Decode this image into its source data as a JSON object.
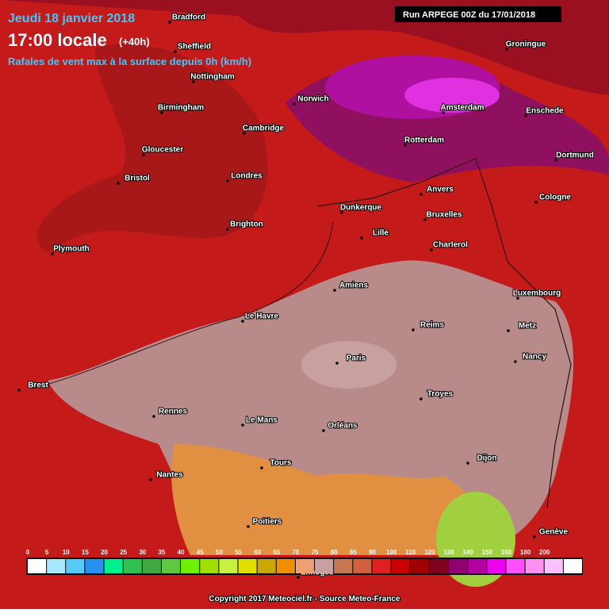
{
  "header": {
    "date": "Jeudi 18 janvier 2018",
    "time": "17:00 locale",
    "lead": "(+40h)",
    "subtitle": "Rafales de vent max à la surface depuis 0h (km/h)",
    "run": "Run ARPEGE 00Z du 17/01/2018"
  },
  "cities": [
    "Bradford",
    "Sheffield",
    "Nottingham",
    "Birmingham",
    "Norwich",
    "Cambridge",
    "Gloucester",
    "Bristol",
    "Londres",
    "Brighton",
    "Plymouth",
    "Groningue",
    "Amsterdam",
    "Enschede",
    "Rotterdam",
    "Dortmund",
    "Anvers",
    "Cologne",
    "Dunkerque",
    "Bruxelles",
    "Lille",
    "Charlerol",
    "Amiens",
    "Luxembourg",
    "Le Havre",
    "Reims",
    "Metz",
    "Paris",
    "Nancy",
    "Brest",
    "Troyes",
    "Rennes",
    "Le Mans",
    "Orléans",
    "Nantes",
    "Tours",
    "Dijon",
    "Poitiers",
    "Genève",
    "Limoges"
  ],
  "legend": {
    "labels": [
      "0",
      "5",
      "10",
      "15",
      "20",
      "25",
      "30",
      "35",
      "40",
      "45",
      "50",
      "55",
      "60",
      "65",
      "70",
      "75",
      "80",
      "85",
      "90",
      "100",
      "110",
      "120",
      "130",
      "140",
      "150",
      "160",
      "180",
      "200"
    ],
    "colors": [
      "#ffffff",
      "#a8e8ff",
      "#58c8f8",
      "#2890f0",
      "#00f090",
      "#30c050",
      "#40a840",
      "#60c840",
      "#70f000",
      "#a0e000",
      "#c8f040",
      "#e0e000",
      "#c8a800",
      "#f09000",
      "#f0a070",
      "#c8a0a0",
      "#c87850",
      "#d06040",
      "#e02020",
      "#c80000",
      "#a00000",
      "#800020",
      "#900070",
      "#b000a0",
      "#f000f0",
      "#ff50ff",
      "#ff90f0",
      "#ffc0ff",
      "#ffffff"
    ]
  },
  "copyright": "Copyright 2017 Meteociel.fr - Source Meteo-France"
}
